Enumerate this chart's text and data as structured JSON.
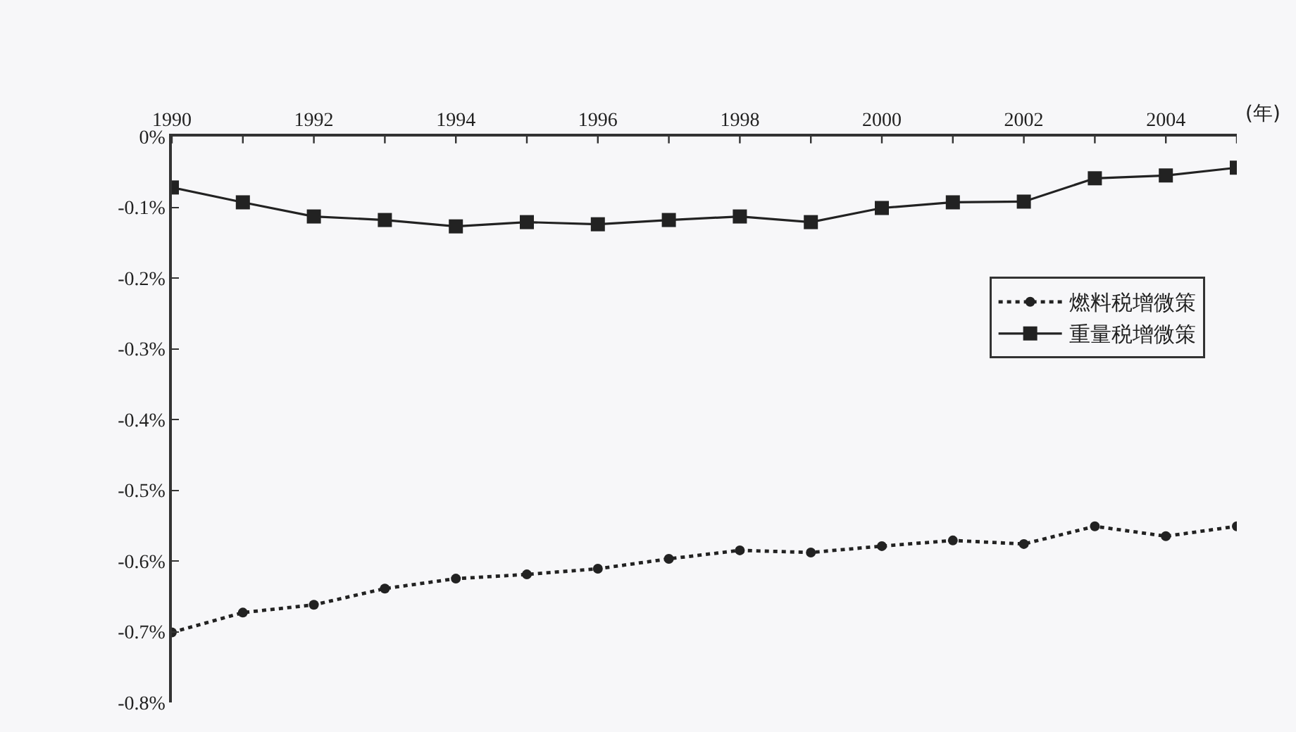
{
  "chart_data": {
    "type": "line",
    "xlabel": "(年)",
    "x": [
      1990,
      1991,
      1992,
      1993,
      1994,
      1995,
      1996,
      1997,
      1998,
      1999,
      2000,
      2001,
      2002,
      2003,
      2004,
      2005
    ],
    "series": [
      {
        "name": "燃料税增微策",
        "color": "#222222",
        "marker": "circle",
        "line_style": "dotted",
        "values": [
          -0.701,
          -0.673,
          -0.662,
          -0.639,
          -0.625,
          -0.619,
          -0.611,
          -0.597,
          -0.585,
          -0.588,
          -0.579,
          -0.571,
          -0.576,
          -0.551,
          -0.565,
          -0.551
        ]
      },
      {
        "name": "重量税增微策",
        "color": "#222222",
        "marker": "square",
        "line_style": "solid",
        "values": [
          -0.072,
          -0.093,
          -0.113,
          -0.118,
          -0.127,
          -0.121,
          -0.124,
          -0.118,
          -0.113,
          -0.121,
          -0.101,
          -0.093,
          -0.092,
          -0.059,
          -0.055,
          -0.044
        ]
      }
    ],
    "xlim": [
      1990,
      2005
    ],
    "xticks": [
      1990,
      {
        "value": 1991,
        "label": null
      },
      1992,
      {
        "value": 1993,
        "label": null
      },
      1994,
      {
        "value": 1995,
        "label": null
      },
      1996,
      {
        "value": 1997,
        "label": null
      },
      1998,
      {
        "value": 1999,
        "label": null
      },
      2000,
      {
        "value": 2001,
        "label": null
      },
      2002,
      {
        "value": 2003,
        "label": null
      },
      2004,
      {
        "value": 2005,
        "label": null
      }
    ],
    "ylim": [
      -0.8,
      0
    ],
    "yticks": [
      {
        "value": 0,
        "label": "0%"
      },
      {
        "value": -0.1,
        "label": "-0.1%"
      },
      {
        "value": -0.2,
        "label": "-0.2%"
      },
      {
        "value": -0.3,
        "label": "-0.3%"
      },
      {
        "value": -0.4,
        "label": "-0.4%"
      },
      {
        "value": -0.5,
        "label": "-0.5%"
      },
      {
        "value": -0.6,
        "label": "-0.6%"
      },
      {
        "value": -0.7,
        "label": "-0.7%"
      },
      {
        "value": -0.8,
        "label": "-0.8%"
      }
    ],
    "grid": false,
    "legend": "right"
  }
}
